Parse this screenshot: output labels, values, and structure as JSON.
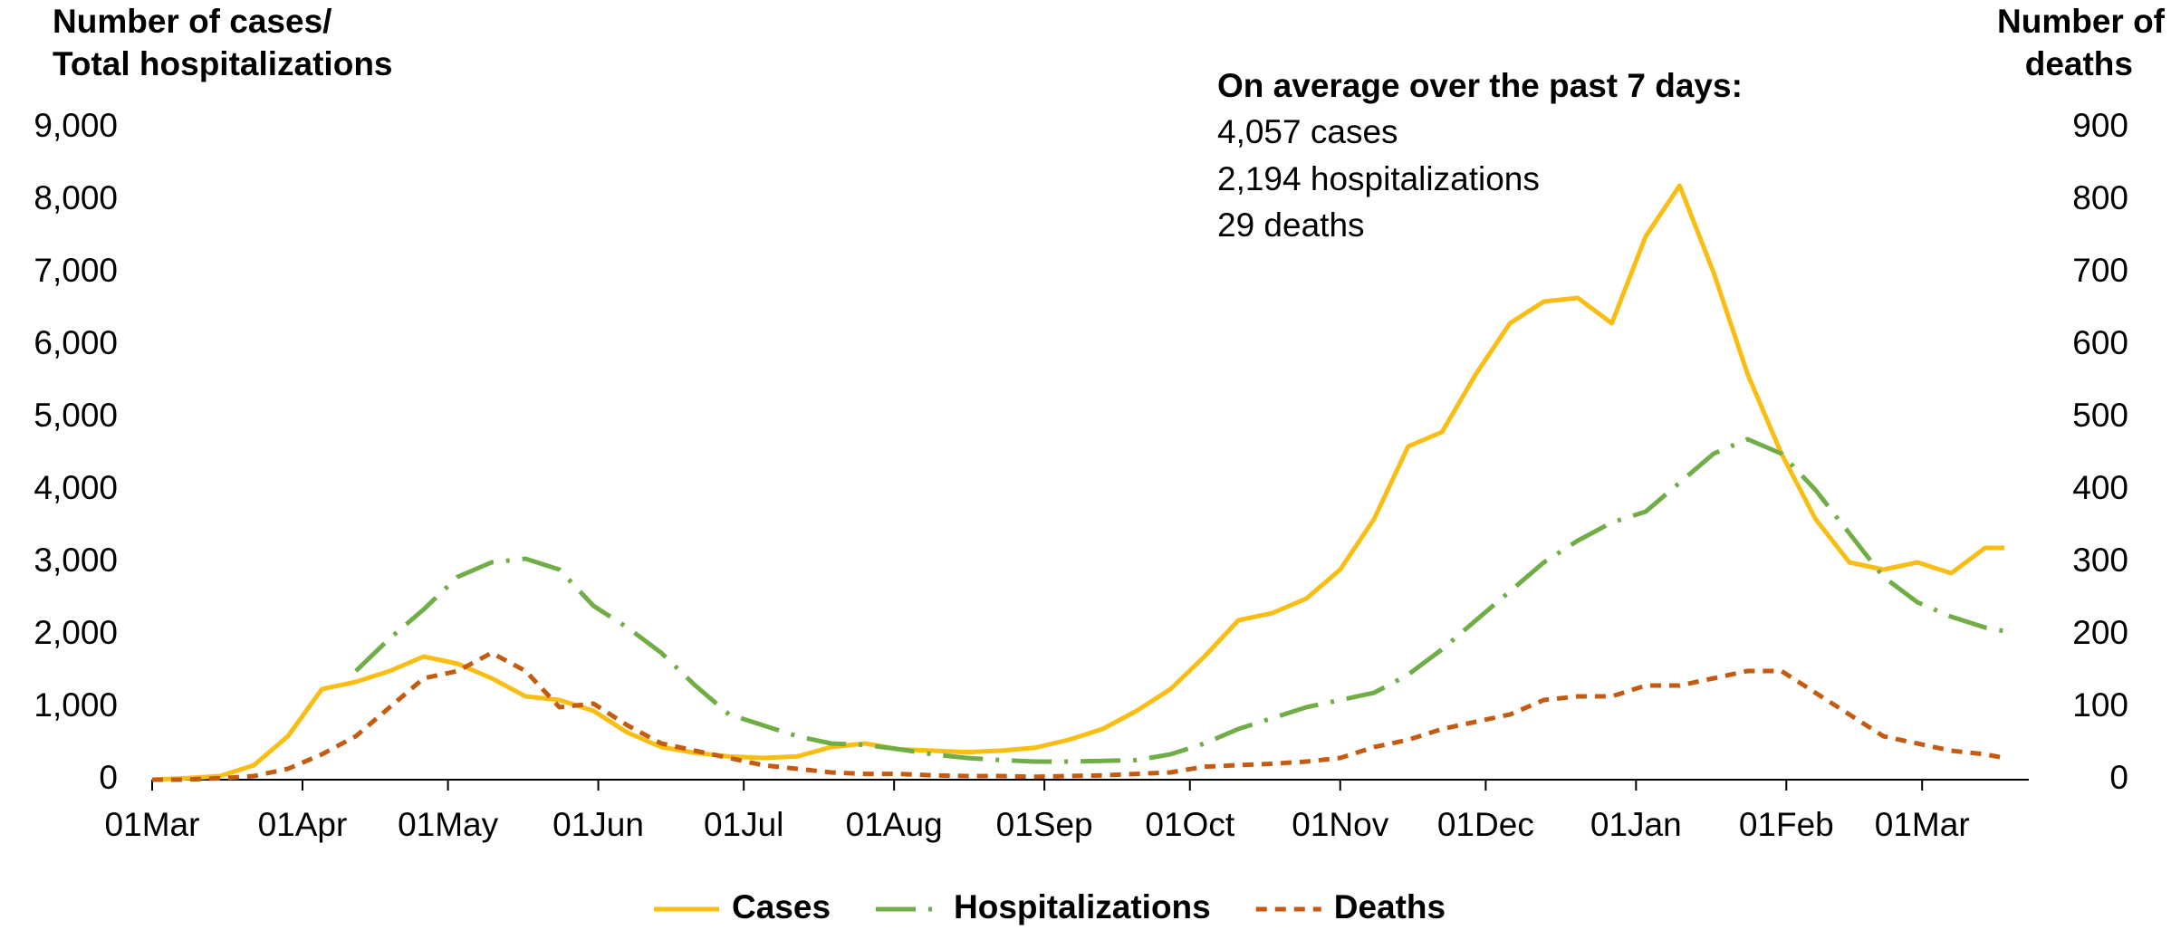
{
  "chart_data": {
    "type": "line",
    "y_label": [
      "Number of cases/",
      "Total hospitalizations"
    ],
    "y2_label": [
      "Number of",
      "deaths"
    ],
    "annotation": [
      "On average over the past 7 days:",
      "4,057 cases",
      "2,194 hospitalizations",
      "29 deaths"
    ],
    "x": [
      0,
      7,
      14,
      21,
      28,
      35,
      42,
      49,
      56,
      63,
      70,
      77,
      84,
      91,
      98,
      105,
      112,
      119,
      126,
      133,
      140,
      147,
      154,
      161,
      168,
      175,
      182,
      189,
      196,
      203,
      210,
      217,
      224,
      231,
      238,
      245,
      252,
      259,
      266,
      273,
      280,
      287,
      294,
      301,
      308,
      315,
      322,
      329,
      336,
      343,
      350,
      357,
      364,
      371,
      378,
      382
    ],
    "xlim": [
      0,
      387
    ],
    "xticks": [
      {
        "value": 0,
        "label": "01Mar"
      },
      {
        "value": 31,
        "label": "01Apr"
      },
      {
        "value": 61,
        "label": "01May"
      },
      {
        "value": 92,
        "label": "01Jun"
      },
      {
        "value": 122,
        "label": "01Jul"
      },
      {
        "value": 153,
        "label": "01Aug"
      },
      {
        "value": 184,
        "label": "01Sep"
      },
      {
        "value": 214,
        "label": "01Oct"
      },
      {
        "value": 245,
        "label": "01Nov"
      },
      {
        "value": 275,
        "label": "01Dec"
      },
      {
        "value": 306,
        "label": "01Jan"
      },
      {
        "value": 337,
        "label": "01Feb"
      },
      {
        "value": 365,
        "label": "01Mar"
      }
    ],
    "ylim": [
      0,
      9000
    ],
    "yticks": [
      0,
      {
        "value": 1000,
        "label": "1,000"
      },
      {
        "value": 2000,
        "label": "2,000"
      },
      {
        "value": 3000,
        "label": "3,000"
      },
      {
        "value": 4000,
        "label": "4,000"
      },
      {
        "value": 5000,
        "label": "5,000"
      },
      {
        "value": 6000,
        "label": "6,000"
      },
      {
        "value": 7000,
        "label": "7,000"
      },
      {
        "value": 8000,
        "label": "8,000"
      },
      {
        "value": 9000,
        "label": "9,000"
      }
    ],
    "y2lim": [
      0,
      900
    ],
    "y2ticks": [
      0,
      100,
      200,
      300,
      400,
      500,
      600,
      700,
      800,
      900
    ],
    "grid": false,
    "legend": "bottom",
    "series": [
      {
        "name": "Cases",
        "color": "#f9bd13",
        "dash": "solid",
        "values": [
          0,
          20,
          50,
          200,
          600,
          1250,
          1350,
          1500,
          1700,
          1600,
          1400,
          1150,
          1100,
          950,
          650,
          450,
          370,
          320,
          300,
          320,
          450,
          500,
          420,
          400,
          380,
          400,
          440,
          550,
          700,
          950,
          1250,
          1700,
          2200,
          2300,
          2500,
          2900,
          3600,
          4600,
          4800,
          5600,
          6300,
          6600,
          6650,
          6300,
          7500,
          8200,
          7000,
          5600,
          4500,
          3600,
          3000,
          2900,
          3000,
          2850,
          3200,
          3200
        ]
      },
      {
        "name": "Hospitalizations",
        "color": "#70ad47",
        "dash": "dash-dot",
        "values": [
          null,
          null,
          null,
          null,
          null,
          null,
          1500,
          1950,
          2350,
          2800,
          3000,
          3050,
          2900,
          2400,
          2100,
          1750,
          1300,
          900,
          750,
          600,
          500,
          480,
          420,
          350,
          300,
          270,
          250,
          250,
          260,
          270,
          350,
          500,
          700,
          850,
          1000,
          1100,
          1200,
          1450,
          1800,
          2200,
          2600,
          3000,
          3300,
          3550,
          3700,
          4100,
          4500,
          4700,
          4500,
          4000,
          3400,
          2800,
          2450,
          2250,
          2100,
          2050
        ]
      },
      {
        "name": "Deaths",
        "color": "#c55a11",
        "dash": "dot",
        "axis": "y2",
        "values": [
          0,
          0,
          2,
          5,
          15,
          35,
          60,
          100,
          140,
          150,
          175,
          150,
          100,
          105,
          75,
          50,
          40,
          30,
          20,
          15,
          10,
          8,
          8,
          6,
          5,
          5,
          4,
          5,
          6,
          8,
          10,
          18,
          20,
          22,
          25,
          30,
          45,
          55,
          70,
          80,
          90,
          110,
          115,
          115,
          130,
          130,
          140,
          150,
          150,
          120,
          90,
          60,
          50,
          40,
          35,
          30
        ]
      }
    ]
  }
}
